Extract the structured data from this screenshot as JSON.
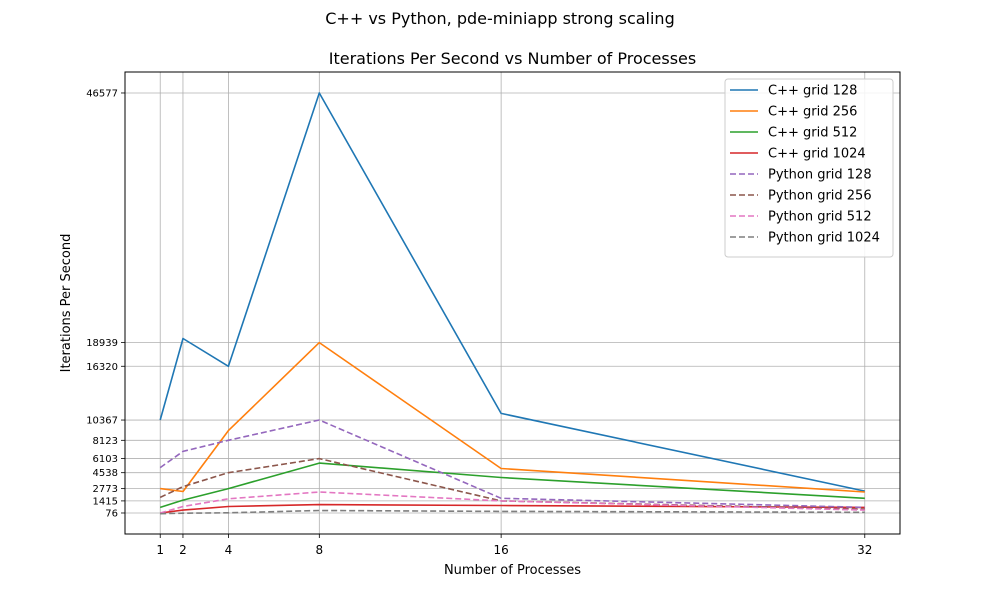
{
  "figure": {
    "suptitle": "C++ vs Python, pde-miniapp strong scaling"
  },
  "chart_data": {
    "type": "line",
    "title": "Iterations Per Second vs Number of Processes",
    "xlabel": "Number of Processes",
    "ylabel": "Iterations Per Second",
    "x": [
      1,
      2,
      4,
      8,
      16,
      32
    ],
    "xticks": [
      1,
      2,
      4,
      8,
      16,
      32
    ],
    "yticks": [
      76,
      1415,
      2773,
      4538,
      6103,
      8123,
      10367,
      16320,
      18939,
      46577
    ],
    "xlim": [
      -0.55,
      33.55
    ],
    "ylim": [
      -2250,
      48900
    ],
    "grid": true,
    "legend_position": "top-right",
    "series": [
      {
        "name": "C++ grid 128",
        "color": "#1f77b4",
        "dash": false,
        "values": [
          10367,
          19400,
          16320,
          46577,
          11100,
          2500
        ]
      },
      {
        "name": "C++ grid 256",
        "color": "#ff7f0e",
        "dash": false,
        "values": [
          2773,
          2450,
          9200,
          18939,
          5000,
          2400
        ]
      },
      {
        "name": "C++ grid 512",
        "color": "#2ca02c",
        "dash": false,
        "values": [
          700,
          1500,
          2773,
          5600,
          4000,
          1700
        ]
      },
      {
        "name": "C++ grid 1024",
        "color": "#d62728",
        "dash": false,
        "values": [
          76,
          400,
          800,
          1000,
          900,
          700
        ]
      },
      {
        "name": "Python grid 128",
        "color": "#9467bd",
        "dash": true,
        "values": [
          5100,
          6900,
          8123,
          10367,
          1700,
          700
        ]
      },
      {
        "name": "Python grid 256",
        "color": "#8c564b",
        "dash": true,
        "values": [
          1800,
          3000,
          4538,
          6103,
          1415,
          500
        ]
      },
      {
        "name": "Python grid 512",
        "color": "#e377c2",
        "dash": true,
        "values": [
          76,
          800,
          1650,
          2400,
          1415,
          400
        ]
      },
      {
        "name": "Python grid 1024",
        "color": "#7f7f7f",
        "dash": true,
        "values": [
          0,
          50,
          100,
          350,
          250,
          150
        ]
      }
    ]
  }
}
